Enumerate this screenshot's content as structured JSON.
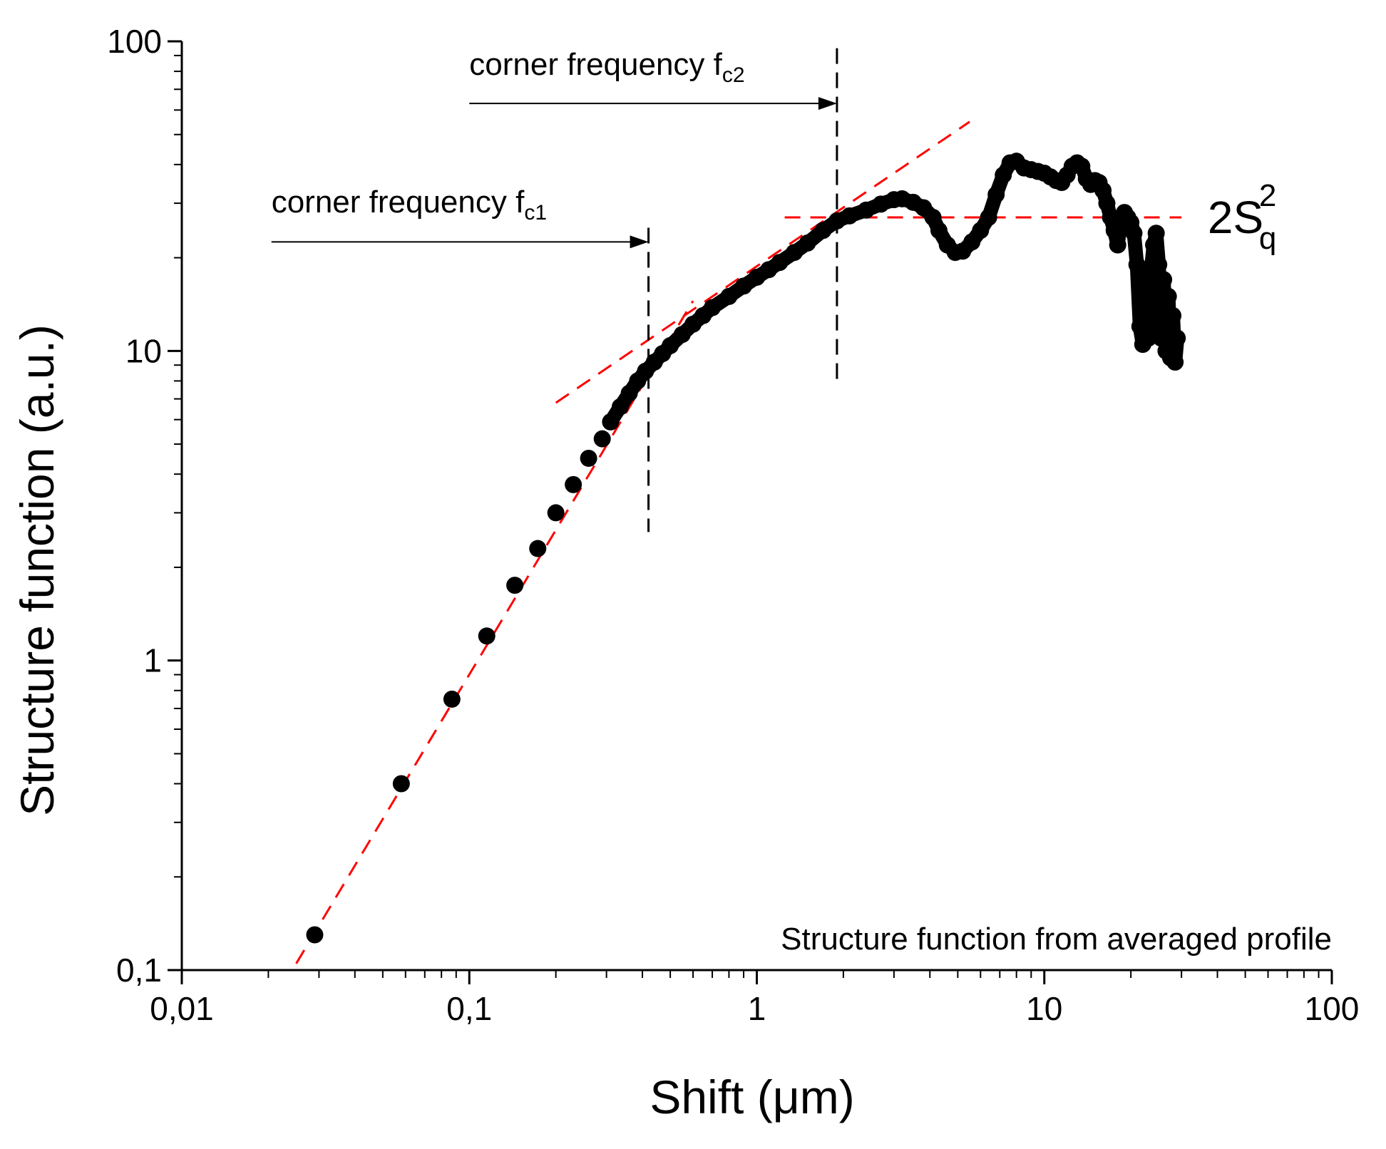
{
  "chart_data": {
    "type": "scatter",
    "xlabel": "Shift (μm)",
    "ylabel": "Structure function (a.u.)",
    "xscale": "log",
    "yscale": "log",
    "xlim": [
      0.01,
      100
    ],
    "ylim": [
      0.1,
      100
    ],
    "x_ticks": [
      {
        "value": 0.01,
        "label": "0,01"
      },
      {
        "value": 0.1,
        "label": "0,1"
      },
      {
        "value": 1,
        "label": "1"
      },
      {
        "value": 10,
        "label": "10"
      },
      {
        "value": 100,
        "label": "100"
      }
    ],
    "y_ticks": [
      {
        "value": 0.1,
        "label": "0,1"
      },
      {
        "value": 1,
        "label": "1"
      },
      {
        "value": 10,
        "label": "10"
      },
      {
        "value": 100,
        "label": "100"
      }
    ],
    "series": [
      {
        "name": "Structure function from averaged profile",
        "color": "#000000",
        "points": [
          [
            0.029,
            0.13
          ],
          [
            0.058,
            0.4
          ],
          [
            0.087,
            0.75
          ],
          [
            0.115,
            1.2
          ],
          [
            0.144,
            1.75
          ],
          [
            0.173,
            2.3
          ],
          [
            0.2,
            3.0
          ],
          [
            0.23,
            3.7
          ],
          [
            0.26,
            4.5
          ],
          [
            0.29,
            5.2
          ],
          [
            0.31,
            5.9
          ],
          [
            0.335,
            6.6
          ],
          [
            0.36,
            7.3
          ],
          [
            0.385,
            8.0
          ],
          [
            0.41,
            8.6
          ],
          [
            0.44,
            9.2
          ],
          [
            0.47,
            9.8
          ],
          [
            0.5,
            10.4
          ],
          [
            0.55,
            11.3
          ],
          [
            0.6,
            12.2
          ],
          [
            0.65,
            13.0
          ],
          [
            0.7,
            13.8
          ],
          [
            0.8,
            15.0
          ],
          [
            0.9,
            16.2
          ],
          [
            1.0,
            17.3
          ],
          [
            1.1,
            18.3
          ],
          [
            1.2,
            19.3
          ],
          [
            1.35,
            20.8
          ],
          [
            1.5,
            22.3
          ],
          [
            1.7,
            24.5
          ],
          [
            1.9,
            26.3
          ],
          [
            2.1,
            27.3
          ],
          [
            2.4,
            28.5
          ],
          [
            2.7,
            29.8
          ],
          [
            3.0,
            30.8
          ],
          [
            3.2,
            31.0
          ],
          [
            3.5,
            30.2
          ],
          [
            3.8,
            29.0
          ],
          [
            4.1,
            27.0
          ],
          [
            4.3,
            24.5
          ],
          [
            4.6,
            22.0
          ],
          [
            4.9,
            20.8
          ],
          [
            5.2,
            21.0
          ],
          [
            5.6,
            22.5
          ],
          [
            6.0,
            24.5
          ],
          [
            6.4,
            27.0
          ],
          [
            6.8,
            32.0
          ],
          [
            7.2,
            37.0
          ],
          [
            7.6,
            40.5
          ],
          [
            8.0,
            41.0
          ],
          [
            8.5,
            39.0
          ],
          [
            9.0,
            38.5
          ],
          [
            9.5,
            38.0
          ],
          [
            10.0,
            37.5
          ],
          [
            10.5,
            36.5
          ],
          [
            11.0,
            35.5
          ],
          [
            11.5,
            35.0
          ],
          [
            12.0,
            37.0
          ],
          [
            12.5,
            39.5
          ],
          [
            13.0,
            40.5
          ],
          [
            13.5,
            39.5
          ],
          [
            14.0,
            36.0
          ],
          [
            14.5,
            34.5
          ],
          [
            15.0,
            35.5
          ],
          [
            15.5,
            35.0
          ],
          [
            16.0,
            33.0
          ],
          [
            16.5,
            30.0
          ],
          [
            17.0,
            27.0
          ],
          [
            17.5,
            24.5
          ],
          [
            18.0,
            22.0
          ],
          [
            18.5,
            27.0
          ],
          [
            19.0,
            28.0
          ],
          [
            19.5,
            27.0
          ],
          [
            20.0,
            26.0
          ],
          [
            20.5,
            24.0
          ],
          [
            21.0,
            19.0
          ],
          [
            21.5,
            12.0
          ],
          [
            22.0,
            10.5
          ],
          [
            22.5,
            16.0
          ],
          [
            23.0,
            11.0
          ],
          [
            23.5,
            18.0
          ],
          [
            24.0,
            22.0
          ],
          [
            24.5,
            24.0
          ],
          [
            25.0,
            19.0
          ],
          [
            25.5,
            11.0
          ],
          [
            26.0,
            17.0
          ],
          [
            26.5,
            10.0
          ],
          [
            27.0,
            15.0
          ],
          [
            27.5,
            9.5
          ],
          [
            28.0,
            13.0
          ],
          [
            28.5,
            9.2
          ],
          [
            29.0,
            11.0
          ]
        ]
      }
    ],
    "fit_lines": [
      {
        "name": "fit-line-low",
        "color": "#ff0000",
        "from": [
          0.025,
          0.105
        ],
        "to": [
          0.6,
          14.5
        ]
      },
      {
        "name": "fit-line-mid",
        "color": "#ff0000",
        "from": [
          0.2,
          6.8
        ],
        "to": [
          5.5,
          55.0
        ]
      },
      {
        "name": "saturation-line",
        "color": "#ff0000",
        "from": [
          1.25,
          27.0
        ],
        "to": [
          30.0,
          27.0
        ]
      }
    ],
    "corner_lines": [
      {
        "name": "corner-line-fc1",
        "x": 0.42,
        "y_from": 2.6,
        "y_to": 25.0
      },
      {
        "name": "corner-line-fc2",
        "x": 1.9,
        "y_from": 7.8,
        "y_to": 95.0
      }
    ],
    "annotations": {
      "fc1": {
        "text": "corner frequency f",
        "sub": "c1",
        "arrow_from_x": 0.0205,
        "arrow_to_x": 0.42,
        "arrow_y": 22.5,
        "text_x": 0.0205,
        "text_y": 28.0
      },
      "fc2": {
        "text": "corner frequency f",
        "sub": "c2",
        "arrow_from_x": 0.1,
        "arrow_to_x": 1.9,
        "arrow_y": 63.0,
        "text_x": 0.1,
        "text_y": 78.0
      },
      "sq": {
        "text": "2S",
        "sup": "2",
        "sub": "q",
        "x": 37.0,
        "y": 27.0
      },
      "legend_label": "Structure function from averaged profile"
    }
  }
}
